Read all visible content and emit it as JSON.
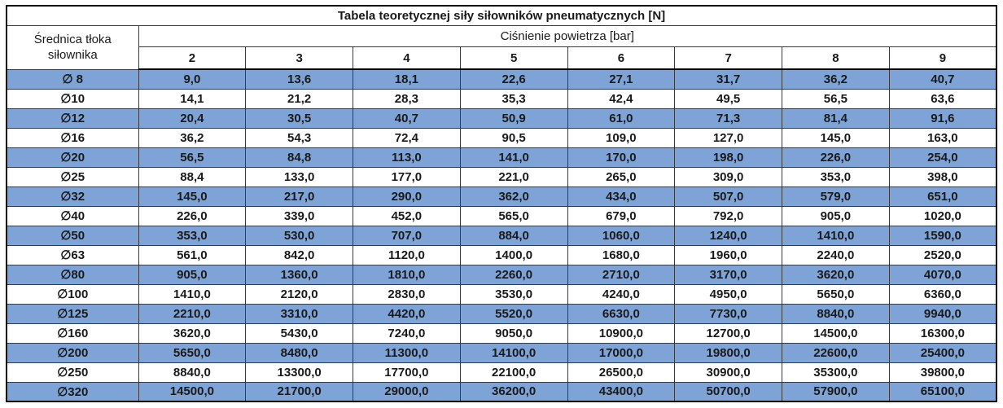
{
  "colors": {
    "row_blue": "#7EA3D6",
    "row_white": "#FFFFFF",
    "border_outer": "#000000",
    "border_inner": "#3A3A3A",
    "text": "#1A1A1A"
  },
  "chart_data": {
    "type": "table",
    "title": "Tabela teoretycznej siły siłowników pneumatycznych [N]",
    "corner_header": "Średnica tłoka siłownika",
    "group_header": "Ciśnienie powietrza [bar]",
    "pressure_columns": [
      "2",
      "3",
      "4",
      "5",
      "6",
      "7",
      "8",
      "9"
    ],
    "rows": [
      {
        "diameter": "∅ 8",
        "values": [
          "9,0",
          "13,6",
          "18,1",
          "22,6",
          "27,1",
          "31,7",
          "36,2",
          "40,7"
        ]
      },
      {
        "diameter": "∅10",
        "values": [
          "14,1",
          "21,2",
          "28,3",
          "35,3",
          "42,4",
          "49,5",
          "56,5",
          "63,6"
        ]
      },
      {
        "diameter": "∅12",
        "values": [
          "20,4",
          "30,5",
          "40,7",
          "50,9",
          "61,0",
          "71,3",
          "81,4",
          "91,6"
        ]
      },
      {
        "diameter": "∅16",
        "values": [
          "36,2",
          "54,3",
          "72,4",
          "90,5",
          "109,0",
          "127,0",
          "145,0",
          "163,0"
        ]
      },
      {
        "diameter": "∅20",
        "values": [
          "56,5",
          "84,8",
          "113,0",
          "141,0",
          "170,0",
          "198,0",
          "226,0",
          "254,0"
        ]
      },
      {
        "diameter": "∅25",
        "values": [
          "88,4",
          "133,0",
          "177,0",
          "221,0",
          "265,0",
          "309,0",
          "353,0",
          "398,0"
        ]
      },
      {
        "diameter": "∅32",
        "values": [
          "145,0",
          "217,0",
          "290,0",
          "362,0",
          "434,0",
          "507,0",
          "579,0",
          "651,0"
        ]
      },
      {
        "diameter": "∅40",
        "values": [
          "226,0",
          "339,0",
          "452,0",
          "565,0",
          "679,0",
          "792,0",
          "905,0",
          "1020,0"
        ]
      },
      {
        "diameter": "∅50",
        "values": [
          "353,0",
          "530,0",
          "707,0",
          "884,0",
          "1060,0",
          "1240,0",
          "1410,0",
          "1590,0"
        ]
      },
      {
        "diameter": "∅63",
        "values": [
          "561,0",
          "842,0",
          "1120,0",
          "1400,0",
          "1680,0",
          "1960,0",
          "2240,0",
          "2520,0"
        ]
      },
      {
        "diameter": "∅80",
        "values": [
          "905,0",
          "1360,0",
          "1810,0",
          "2260,0",
          "2710,0",
          "3170,0",
          "3620,0",
          "4070,0"
        ]
      },
      {
        "diameter": "∅100",
        "values": [
          "1410,0",
          "2120,0",
          "2830,0",
          "3530,0",
          "4240,0",
          "4950,0",
          "5650,0",
          "6360,0"
        ]
      },
      {
        "diameter": "∅125",
        "values": [
          "2210,0",
          "3310,0",
          "4420,0",
          "5520,0",
          "6630,0",
          "7730,0",
          "8840,0",
          "9940,0"
        ]
      },
      {
        "diameter": "∅160",
        "values": [
          "3620,0",
          "5430,0",
          "7240,0",
          "9050,0",
          "10900,0",
          "12700,0",
          "14500,0",
          "16300,0"
        ]
      },
      {
        "diameter": "∅200",
        "values": [
          "5650,0",
          "8480,0",
          "11300,0",
          "14100,0",
          "17000,0",
          "19800,0",
          "22600,0",
          "25400,0"
        ]
      },
      {
        "diameter": "∅250",
        "values": [
          "8840,0",
          "13300,0",
          "17700,0",
          "22100,0",
          "26500,0",
          "30900,0",
          "35300,0",
          "39800,0"
        ]
      },
      {
        "diameter": "∅320",
        "values": [
          "14500,0",
          "21700,0",
          "29000,0",
          "36200,0",
          "43400,0",
          "50700,0",
          "57900,0",
          "65100,0"
        ]
      }
    ],
    "layout": {
      "first_row_shade": "blue",
      "row_shading": "alternating blue/white starting with blue"
    }
  }
}
